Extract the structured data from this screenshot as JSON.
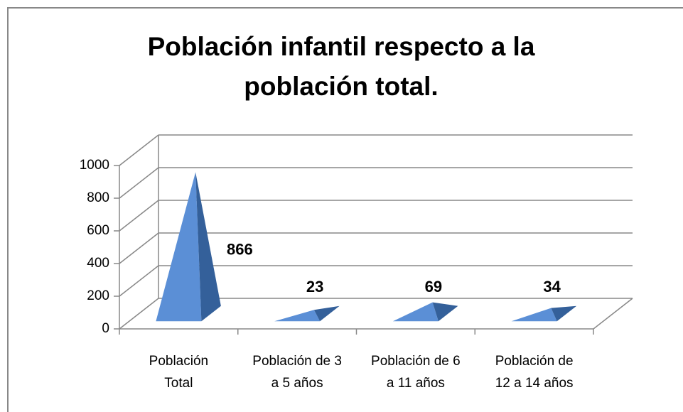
{
  "chart_data": {
    "type": "pyramid3d",
    "title": "Población infantil respecto a la población total.",
    "categories": [
      [
        "Población",
        "Total"
      ],
      [
        "Población de 3",
        "a 5 años"
      ],
      [
        "Población de 6",
        "a 11 años"
      ],
      [
        "Población de",
        "12 a 14 años"
      ]
    ],
    "values": [
      866,
      23,
      69,
      34
    ],
    "color": "#4f81bd",
    "ylim": [
      0,
      1000
    ],
    "yticks": [
      0,
      200,
      400,
      600,
      800,
      1000
    ],
    "grid": true
  }
}
